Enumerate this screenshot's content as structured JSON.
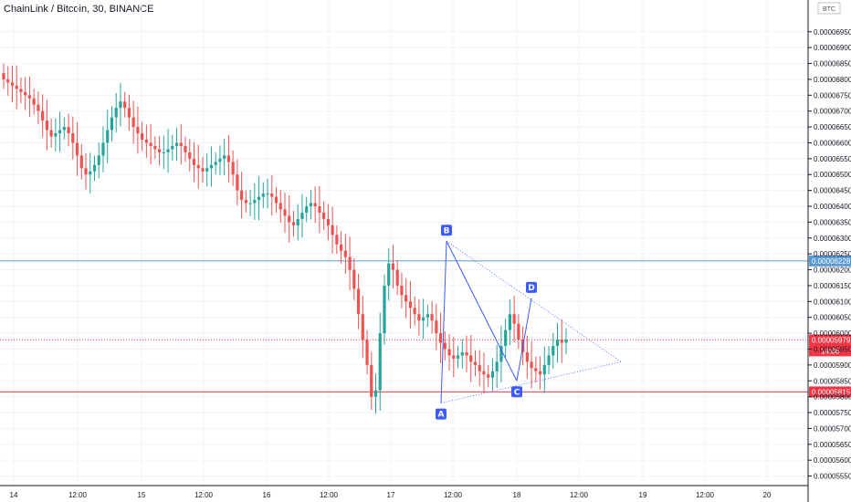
{
  "header": {
    "title": "ChainLink / Bitcoin, 30, BINANCE"
  },
  "chart_data": {
    "type": "candlestick",
    "title": "ChainLink / Bitcoin, 30, BINANCE",
    "ylabel": "BTC",
    "ylim": [
      5.52e-05,
      7.05e-05
    ],
    "y_ticks": [
      "0.00006950",
      "0.00006900",
      "0.00006850",
      "0.00006800",
      "0.00006750",
      "0.00006700",
      "0.00006650",
      "0.00006600",
      "0.00006550",
      "0.00006500",
      "0.00006450",
      "0.00006400",
      "0.00006350",
      "0.00006300",
      "0.00006250",
      "0.00006200",
      "0.00006150",
      "0.00006100",
      "0.00006050",
      "0.00006000",
      "0.00005950",
      "0.00005900",
      "0.00005850",
      "0.00005800",
      "0.00005750",
      "0.00005700",
      "0.00005650",
      "0.00005600",
      "0.00005550"
    ],
    "x_ticks": [
      "14",
      "12:00",
      "15",
      "12:00",
      "16",
      "12:00",
      "17",
      "12:00",
      "18",
      "12:00",
      "19",
      "12:00",
      "20"
    ],
    "grid": true,
    "horizontal_lines": [
      {
        "value": 6.228e-05,
        "label": "0.00006228",
        "color": "#5b9bd5"
      },
      {
        "value": 5.815e-05,
        "label": "0.00005815",
        "color": "#f23645"
      }
    ],
    "current_price": {
      "value": 5.979e-05,
      "label": "0.00005979",
      "countdown": "14:06",
      "color": "#f23645"
    },
    "pattern_points": [
      {
        "label": "A",
        "x": "17 07:00",
        "value": 5.78e-05
      },
      {
        "label": "B",
        "x": "17 08:00",
        "value": 6.29e-05
      },
      {
        "label": "C",
        "x": "18 00:00",
        "value": 5.85e-05
      },
      {
        "label": "D",
        "x": "18 04:00",
        "value": 6.11e-05
      }
    ],
    "colors": {
      "up": "#26a69a",
      "down": "#ef5350",
      "pattern": "#3d5afe",
      "point_badge": "#3d5afe"
    },
    "close_series": [
      6.8e-05,
      6.79e-05,
      6.78e-05,
      6.77e-05,
      6.76e-05,
      6.75e-05,
      6.74e-05,
      6.72e-05,
      6.7e-05,
      6.67e-05,
      6.64e-05,
      6.62e-05,
      6.63e-05,
      6.64e-05,
      6.65e-05,
      6.63e-05,
      6.6e-05,
      6.56e-05,
      6.52e-05,
      6.5e-05,
      6.51e-05,
      6.53e-05,
      6.56e-05,
      6.6e-05,
      6.64e-05,
      6.68e-05,
      6.71e-05,
      6.73e-05,
      6.71e-05,
      6.68e-05,
      6.65e-05,
      6.63e-05,
      6.61e-05,
      6.6e-05,
      6.59e-05,
      6.58e-05,
      6.57e-05,
      6.57e-05,
      6.58e-05,
      6.59e-05,
      6.6e-05,
      6.59e-05,
      6.57e-05,
      6.55e-05,
      6.53e-05,
      6.52e-05,
      6.51e-05,
      6.52e-05,
      6.53e-05,
      6.54e-05,
      6.55e-05,
      6.56e-05,
      6.54e-05,
      6.5e-05,
      6.45e-05,
      6.42e-05,
      6.41e-05,
      6.41e-05,
      6.42e-05,
      6.43e-05,
      6.44e-05,
      6.44e-05,
      6.43e-05,
      6.41e-05,
      6.39e-05,
      6.37e-05,
      6.35e-05,
      6.34e-05,
      6.36e-05,
      6.38e-05,
      6.4e-05,
      6.41e-05,
      6.4e-05,
      6.38e-05,
      6.36e-05,
      6.34e-05,
      6.31e-05,
      6.28e-05,
      6.26e-05,
      6.24e-05,
      6.2e-05,
      6.14e-05,
      6.06e-05,
      5.98e-05,
      5.9e-05,
      5.8e-05,
      5.82e-05,
      6e-05,
      6.15e-05,
      6.22e-05,
      6.2e-05,
      6.15e-05,
      6.12e-05,
      6.1e-05,
      6.08e-05,
      6.06e-05,
      6.04e-05,
      6.05e-05,
      6.06e-05,
      6.04e-05,
      6e-05,
      5.97e-05,
      5.95e-05,
      5.93e-05,
      5.92e-05,
      5.93e-05,
      5.94e-05,
      5.93e-05,
      5.91e-05,
      5.9e-05,
      5.88e-05,
      5.87e-05,
      5.86e-05,
      5.88e-05,
      5.91e-05,
      5.96e-05,
      6.01e-05,
      6.06e-05,
      6.03e-05,
      5.98e-05,
      5.94e-05,
      5.91e-05,
      5.89e-05,
      5.88e-05,
      5.87e-05,
      5.9e-05,
      5.93e-05,
      5.96e-05,
      5.98e-05,
      5.97e-05,
      5.98e-05
    ]
  }
}
